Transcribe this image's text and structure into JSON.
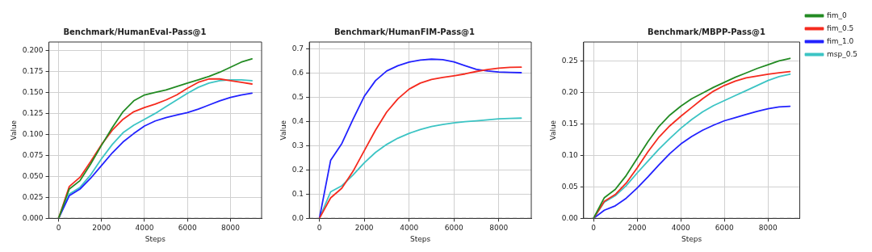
{
  "chart_data": [
    {
      "type": "line",
      "title": "Benchmark/HumanEval-Pass@1",
      "xlabel": "Steps",
      "ylabel": "Value",
      "x": [
        0,
        500,
        1000,
        1500,
        2000,
        2500,
        3000,
        3500,
        4000,
        4500,
        5000,
        5500,
        6000,
        6500,
        7000,
        7500,
        8000,
        8500,
        9000
      ],
      "xlim": [
        -450,
        9450
      ],
      "xticks": [
        0,
        2000,
        4000,
        6000,
        8000
      ],
      "ylim": [
        0,
        0.21
      ],
      "yticks": [
        {
          "value": 0,
          "label": "0.000"
        },
        {
          "value": 0.025,
          "label": "0.025"
        },
        {
          "value": 0.05,
          "label": "0.050"
        },
        {
          "value": 0.075,
          "label": "0.075"
        },
        {
          "value": 0.1,
          "label": "0.100"
        },
        {
          "value": 0.125,
          "label": "0.125"
        },
        {
          "value": 0.15,
          "label": "0.150"
        },
        {
          "value": 0.175,
          "label": "0.175"
        },
        {
          "value": 0.2,
          "label": "0.200"
        }
      ],
      "grid": true,
      "legend": false,
      "ref_lines": [
        {
          "axis": "y",
          "value": 0,
          "color": "#999999",
          "line_style": "dashed"
        }
      ],
      "series": [
        {
          "color": "#238b23",
          "values": [
            0,
            0.035,
            0.045,
            0.065,
            0.087,
            0.108,
            0.127,
            0.14,
            0.147,
            0.15,
            0.153,
            0.157,
            0.161,
            0.165,
            0.169,
            0.174,
            0.18,
            0.186,
            0.19
          ]
        },
        {
          "color": "#f52a1e",
          "values": [
            0,
            0.038,
            0.049,
            0.068,
            0.088,
            0.105,
            0.118,
            0.127,
            0.132,
            0.136,
            0.141,
            0.147,
            0.155,
            0.162,
            0.166,
            0.166,
            0.164,
            0.162,
            0.16
          ]
        },
        {
          "color": "#2222ff",
          "values": [
            0,
            0.027,
            0.035,
            0.048,
            0.063,
            0.078,
            0.091,
            0.101,
            0.11,
            0.116,
            0.12,
            0.123,
            0.126,
            0.13,
            0.135,
            0.14,
            0.144,
            0.147,
            0.149
          ]
        },
        {
          "color": "#3cc4c4",
          "values": [
            0,
            0.029,
            0.037,
            0.052,
            0.071,
            0.088,
            0.102,
            0.111,
            0.118,
            0.125,
            0.133,
            0.141,
            0.149,
            0.156,
            0.161,
            0.164,
            0.165,
            0.165,
            0.164
          ]
        }
      ]
    },
    {
      "type": "line",
      "title": "Benchmark/HumanFIM-Pass@1",
      "xlabel": "Steps",
      "ylabel": "Value",
      "x": [
        0,
        500,
        1000,
        1500,
        2000,
        2500,
        3000,
        3500,
        4000,
        4500,
        5000,
        5500,
        6000,
        6500,
        7000,
        7500,
        8000,
        8500,
        9000
      ],
      "xlim": [
        -450,
        9450
      ],
      "xticks": [
        0,
        2000,
        4000,
        6000,
        8000
      ],
      "ylim": [
        0,
        0.73
      ],
      "yticks": [
        {
          "value": 0,
          "label": "0.0"
        },
        {
          "value": 0.1,
          "label": "0.1"
        },
        {
          "value": 0.2,
          "label": "0.2"
        },
        {
          "value": 0.3,
          "label": "0.3"
        },
        {
          "value": 0.4,
          "label": "0.4"
        },
        {
          "value": 0.5,
          "label": "0.5"
        },
        {
          "value": 0.6,
          "label": "0.6"
        },
        {
          "value": 0.7,
          "label": "0.7"
        }
      ],
      "grid": true,
      "legend": false,
      "ref_lines": [
        {
          "axis": "y",
          "value": 0,
          "color": "#999999",
          "line_style": "dashed"
        }
      ],
      "series": [
        {
          "color": "#f52a1e",
          "values": [
            0,
            0.085,
            0.125,
            0.195,
            0.28,
            0.365,
            0.44,
            0.495,
            0.535,
            0.56,
            0.575,
            0.583,
            0.59,
            0.598,
            0.608,
            0.616,
            0.622,
            0.625,
            0.626
          ]
        },
        {
          "color": "#2222ff",
          "values": [
            0,
            0.24,
            0.31,
            0.41,
            0.505,
            0.57,
            0.61,
            0.632,
            0.647,
            0.655,
            0.659,
            0.657,
            0.648,
            0.632,
            0.617,
            0.61,
            0.606,
            0.604,
            0.603
          ]
        },
        {
          "color": "#3cc4c4",
          "values": [
            0,
            0.11,
            0.135,
            0.18,
            0.23,
            0.273,
            0.306,
            0.332,
            0.352,
            0.368,
            0.38,
            0.389,
            0.395,
            0.4,
            0.404,
            0.408,
            0.412,
            0.414,
            0.415
          ]
        }
      ]
    },
    {
      "type": "line",
      "title": "Benchmark/MBPP-Pass@1",
      "xlabel": "Steps",
      "ylabel": "Value",
      "x": [
        0,
        500,
        1000,
        1500,
        2000,
        2500,
        3000,
        3500,
        4000,
        4500,
        5000,
        5500,
        6000,
        6500,
        7000,
        7500,
        8000,
        8500,
        9000
      ],
      "xlim": [
        -450,
        9450
      ],
      "xticks": [
        0,
        2000,
        4000,
        6000,
        8000
      ],
      "ylim": [
        0,
        0.28
      ],
      "yticks": [
        {
          "value": 0,
          "label": "0.00"
        },
        {
          "value": 0.05,
          "label": "0.05"
        },
        {
          "value": 0.1,
          "label": "0.10"
        },
        {
          "value": 0.15,
          "label": "0.15"
        },
        {
          "value": 0.2,
          "label": "0.20"
        },
        {
          "value": 0.25,
          "label": "0.25"
        }
      ],
      "grid": true,
      "legend": "top right",
      "ref_lines": [
        {
          "axis": "y",
          "value": 0,
          "color": "#999999",
          "line_style": "dashed"
        }
      ],
      "series": [
        {
          "name": "fim_0",
          "color": "#238b23",
          "values": [
            0,
            0.033,
            0.046,
            0.068,
            0.095,
            0.122,
            0.146,
            0.164,
            0.178,
            0.19,
            0.199,
            0.208,
            0.216,
            0.224,
            0.231,
            0.238,
            0.244,
            0.25,
            0.254
          ]
        },
        {
          "name": "fim_0.5",
          "color": "#f52a1e",
          "values": [
            0,
            0.027,
            0.038,
            0.056,
            0.08,
            0.106,
            0.129,
            0.147,
            0.162,
            0.176,
            0.19,
            0.202,
            0.211,
            0.218,
            0.223,
            0.226,
            0.229,
            0.231,
            0.233
          ]
        },
        {
          "name": "fim_1.0",
          "color": "#2222ff",
          "values": [
            0,
            0.013,
            0.02,
            0.032,
            0.048,
            0.066,
            0.085,
            0.103,
            0.118,
            0.13,
            0.14,
            0.148,
            0.155,
            0.16,
            0.165,
            0.17,
            0.174,
            0.177,
            0.178
          ]
        },
        {
          "name": "msp_0.5",
          "color": "#3cc4c4",
          "values": [
            0,
            0.026,
            0.036,
            0.052,
            0.072,
            0.091,
            0.11,
            0.127,
            0.143,
            0.157,
            0.169,
            0.179,
            0.187,
            0.195,
            0.203,
            0.211,
            0.219,
            0.225,
            0.229
          ]
        }
      ]
    }
  ]
}
